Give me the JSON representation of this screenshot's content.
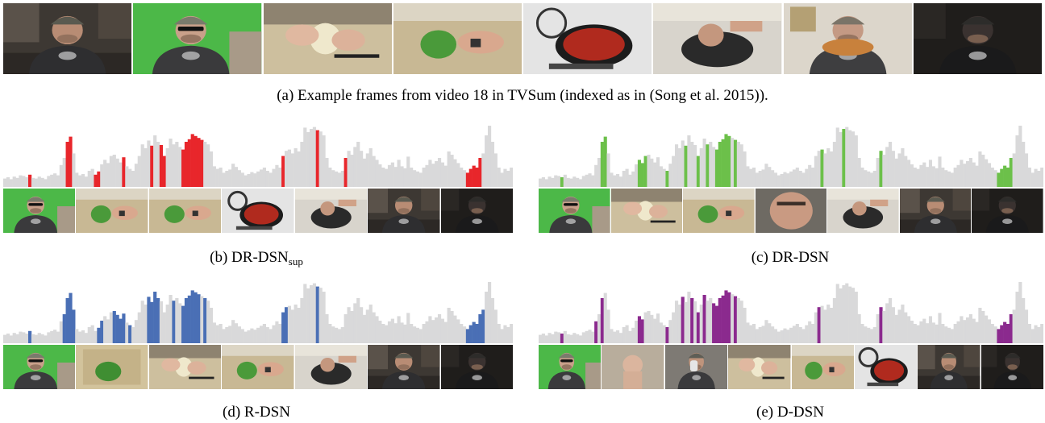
{
  "figure": {
    "caption_a": "(a) Example frames from video 18 in TVSum (indexed as in (Song et al. 2015)).",
    "caption_b_main": "(b) DR-DSN",
    "caption_b_sub": "sup",
    "caption_c": "(c) DR-DSN",
    "caption_d": "(d) R-DSN",
    "caption_e": "(e) D-DSN"
  },
  "colors": {
    "background_bar": "#d9d9da",
    "dr_dsn_sup": "#e8262b",
    "dr_dsn": "#6cc04a",
    "r_dsn": "#4a6fb5",
    "d_dsn": "#8b2a8e"
  },
  "example_frames": [
    {
      "scene": "man-kitchen-dark"
    },
    {
      "scene": "man-greenscreen-sunglasses"
    },
    {
      "scene": "hands-peeling-onion"
    },
    {
      "scene": "hands-cutting-pepper"
    },
    {
      "scene": "sauce-pan-on-stove"
    },
    {
      "scene": "hands-stirring-pan"
    },
    {
      "scene": "man-eating-sandwich"
    },
    {
      "scene": "man-dark-fade"
    }
  ],
  "importance_scores": [
    0.13,
    0.15,
    0.12,
    0.16,
    0.14,
    0.18,
    0.17,
    0.15,
    0.19,
    0.14,
    0.13,
    0.16,
    0.14,
    0.12,
    0.17,
    0.19,
    0.21,
    0.18,
    0.34,
    0.45,
    0.7,
    0.78,
    0.52,
    0.22,
    0.18,
    0.2,
    0.16,
    0.25,
    0.28,
    0.19,
    0.24,
    0.35,
    0.42,
    0.37,
    0.48,
    0.5,
    0.44,
    0.38,
    0.46,
    0.32,
    0.28,
    0.25,
    0.36,
    0.48,
    0.66,
    0.6,
    0.72,
    0.64,
    0.8,
    0.7,
    0.65,
    0.48,
    0.6,
    0.75,
    0.66,
    0.7,
    0.62,
    0.58,
    0.7,
    0.74,
    0.82,
    0.79,
    0.76,
    0.73,
    0.7,
    0.66,
    0.55,
    0.32,
    0.28,
    0.3,
    0.22,
    0.25,
    0.27,
    0.36,
    0.31,
    0.26,
    0.22,
    0.18,
    0.2,
    0.23,
    0.21,
    0.24,
    0.27,
    0.3,
    0.25,
    0.22,
    0.28,
    0.34,
    0.3,
    0.48,
    0.56,
    0.58,
    0.52,
    0.6,
    0.55,
    0.7,
    0.92,
    0.85,
    0.9,
    0.93,
    0.88,
    0.86,
    0.8,
    0.45,
    0.3,
    0.26,
    0.24,
    0.22,
    0.25,
    0.45,
    0.56,
    0.5,
    0.62,
    0.7,
    0.56,
    0.44,
    0.52,
    0.6,
    0.48,
    0.42,
    0.35,
    0.3,
    0.28,
    0.34,
    0.38,
    0.31,
    0.42,
    0.32,
    0.29,
    0.47,
    0.3,
    0.26,
    0.24,
    0.22,
    0.3,
    0.34,
    0.42,
    0.36,
    0.4,
    0.45,
    0.38,
    0.33,
    0.55,
    0.5,
    0.43,
    0.37,
    0.3,
    0.26,
    0.22,
    0.28,
    0.33,
    0.3,
    0.45,
    0.52,
    0.8,
    0.95,
    0.7,
    0.52,
    0.3,
    0.22,
    0.28,
    0.25,
    0.3
  ],
  "methods": [
    {
      "id": "dr_dsn_sup",
      "selected_segments": [
        [
          8,
          8
        ],
        [
          20,
          21
        ],
        [
          29,
          30
        ],
        [
          38,
          38
        ],
        [
          47,
          47
        ],
        [
          50,
          51
        ],
        [
          57,
          63
        ],
        [
          89,
          89
        ],
        [
          100,
          100
        ],
        [
          109,
          109
        ],
        [
          148,
          152
        ]
      ],
      "keyframes": [
        "man-greenscreen-sunglasses",
        "hands-cutting-pepper",
        "hands-cutting-pepper",
        "sauce-pan-on-stove",
        "hands-stirring-pan",
        "man-kitchen-dark",
        "man-dark-fade"
      ]
    },
    {
      "id": "dr_dsn",
      "selected_segments": [
        [
          7,
          7
        ],
        [
          20,
          21
        ],
        [
          32,
          34
        ],
        [
          41,
          41
        ],
        [
          47,
          47
        ],
        [
          51,
          51
        ],
        [
          54,
          54
        ],
        [
          57,
          61
        ],
        [
          63,
          63
        ],
        [
          91,
          91
        ],
        [
          98,
          98
        ],
        [
          110,
          110
        ],
        [
          148,
          152
        ]
      ],
      "keyframes": [
        "man-greenscreen-sunglasses",
        "hands-peeling-onion",
        "hands-cutting-pepper",
        "man-close-face",
        "hands-stirring-pan",
        "man-kitchen-dark",
        "man-dark-fade"
      ]
    },
    {
      "id": "r_dsn",
      "selected_segments": [
        [
          8,
          8
        ],
        [
          19,
          22
        ],
        [
          30,
          31
        ],
        [
          35,
          38
        ],
        [
          40,
          40
        ],
        [
          46,
          49
        ],
        [
          54,
          54
        ],
        [
          57,
          62
        ],
        [
          64,
          64
        ],
        [
          89,
          90
        ],
        [
          100,
          100
        ],
        [
          148,
          153
        ]
      ],
      "keyframes": [
        "man-greenscreen-sunglasses",
        "cutting-board-pepper",
        "hands-peeling-onion",
        "hands-cutting-pepper",
        "hands-stirring-pan",
        "man-kitchen-dark",
        "man-dark-fade"
      ]
    },
    {
      "id": "d_dsn",
      "selected_segments": [
        [
          7,
          7
        ],
        [
          18,
          18
        ],
        [
          20,
          20
        ],
        [
          32,
          33
        ],
        [
          41,
          41
        ],
        [
          46,
          46
        ],
        [
          49,
          49
        ],
        [
          51,
          51
        ],
        [
          53,
          53
        ],
        [
          56,
          61
        ],
        [
          63,
          63
        ],
        [
          90,
          90
        ],
        [
          110,
          110
        ],
        [
          148,
          152
        ]
      ],
      "keyframes": [
        "man-greenscreen-sunglasses",
        "hand-holding-onion",
        "man-drinking",
        "hands-peeling-onion",
        "hands-cutting-pepper",
        "sauce-pan-on-stove",
        "man-kitchen-dark",
        "man-dark-fade"
      ]
    }
  ]
}
